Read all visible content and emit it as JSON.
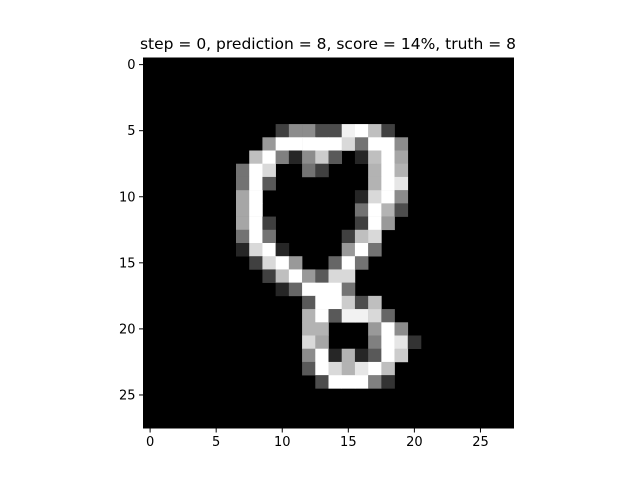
{
  "chart_data": {
    "type": "heatmap",
    "title": "step = 0, prediction = 8, score = 14%, truth = 8",
    "rows": 28,
    "cols": 28,
    "colormap": "gray",
    "xlim": [
      -0.5,
      27.5
    ],
    "ylim": [
      27.5,
      -0.5
    ],
    "xticks": [
      0,
      5,
      10,
      15,
      20,
      25
    ],
    "yticks": [
      0,
      5,
      10,
      15,
      20,
      25
    ],
    "grid": false,
    "nonzero_cells": [
      [
        5,
        10,
        0.25
      ],
      [
        5,
        11,
        0.55
      ],
      [
        5,
        12,
        0.55
      ],
      [
        5,
        13,
        0.3
      ],
      [
        5,
        14,
        0.3
      ],
      [
        5,
        15,
        0.95
      ],
      [
        5,
        16,
        1.0
      ],
      [
        5,
        17,
        0.75
      ],
      [
        5,
        18,
        0.25
      ],
      [
        6,
        9,
        0.6
      ],
      [
        6,
        10,
        1.0
      ],
      [
        6,
        11,
        1.0
      ],
      [
        6,
        12,
        1.0
      ],
      [
        6,
        13,
        1.0
      ],
      [
        6,
        14,
        1.0
      ],
      [
        6,
        15,
        0.85
      ],
      [
        6,
        16,
        0.45
      ],
      [
        6,
        17,
        1.0
      ],
      [
        6,
        18,
        1.0
      ],
      [
        6,
        19,
        0.55
      ],
      [
        7,
        8,
        0.75
      ],
      [
        7,
        9,
        1.0
      ],
      [
        7,
        10,
        0.5
      ],
      [
        7,
        11,
        0.15
      ],
      [
        7,
        12,
        0.55
      ],
      [
        7,
        13,
        0.8
      ],
      [
        7,
        14,
        0.35
      ],
      [
        7,
        16,
        0.15
      ],
      [
        7,
        17,
        0.75
      ],
      [
        7,
        18,
        1.0
      ],
      [
        7,
        19,
        0.65
      ],
      [
        8,
        7,
        0.45
      ],
      [
        8,
        8,
        1.0
      ],
      [
        8,
        9,
        0.85
      ],
      [
        8,
        12,
        0.45
      ],
      [
        8,
        13,
        0.25
      ],
      [
        8,
        17,
        0.7
      ],
      [
        8,
        18,
        1.0
      ],
      [
        8,
        19,
        0.7
      ],
      [
        9,
        7,
        0.45
      ],
      [
        9,
        8,
        1.0
      ],
      [
        9,
        9,
        0.35
      ],
      [
        9,
        17,
        0.7
      ],
      [
        9,
        18,
        1.0
      ],
      [
        9,
        19,
        0.9
      ],
      [
        10,
        7,
        0.65
      ],
      [
        10,
        8,
        1.0
      ],
      [
        10,
        16,
        0.15
      ],
      [
        10,
        17,
        0.85
      ],
      [
        10,
        18,
        1.0
      ],
      [
        10,
        19,
        0.55
      ],
      [
        11,
        7,
        0.65
      ],
      [
        11,
        8,
        1.0
      ],
      [
        11,
        16,
        0.45
      ],
      [
        11,
        17,
        1.0
      ],
      [
        11,
        18,
        0.7
      ],
      [
        11,
        19,
        0.3
      ],
      [
        12,
        7,
        0.65
      ],
      [
        12,
        8,
        1.0
      ],
      [
        12,
        9,
        0.25
      ],
      [
        12,
        16,
        0.25
      ],
      [
        12,
        17,
        1.0
      ],
      [
        12,
        18,
        0.6
      ],
      [
        13,
        7,
        0.45
      ],
      [
        13,
        8,
        1.0
      ],
      [
        13,
        9,
        0.45
      ],
      [
        13,
        15,
        0.25
      ],
      [
        13,
        16,
        0.75
      ],
      [
        13,
        17,
        0.85
      ],
      [
        14,
        7,
        0.15
      ],
      [
        14,
        8,
        0.85
      ],
      [
        14,
        9,
        1.0
      ],
      [
        14,
        10,
        0.15
      ],
      [
        14,
        15,
        0.6
      ],
      [
        14,
        16,
        1.0
      ],
      [
        14,
        17,
        0.45
      ],
      [
        15,
        8,
        0.25
      ],
      [
        15,
        9,
        0.85
      ],
      [
        15,
        10,
        1.0
      ],
      [
        15,
        11,
        0.6
      ],
      [
        15,
        14,
        0.4
      ],
      [
        15,
        15,
        1.0
      ],
      [
        15,
        16,
        0.45
      ],
      [
        16,
        9,
        0.25
      ],
      [
        16,
        10,
        0.75
      ],
      [
        16,
        11,
        1.0
      ],
      [
        16,
        12,
        0.6
      ],
      [
        16,
        13,
        0.35
      ],
      [
        16,
        14,
        0.85
      ],
      [
        16,
        15,
        0.85
      ],
      [
        17,
        10,
        0.15
      ],
      [
        17,
        11,
        0.4
      ],
      [
        17,
        12,
        1.0
      ],
      [
        17,
        13,
        1.0
      ],
      [
        17,
        14,
        1.0
      ],
      [
        17,
        15,
        0.45
      ],
      [
        18,
        12,
        0.35
      ],
      [
        18,
        13,
        1.0
      ],
      [
        18,
        14,
        1.0
      ],
      [
        18,
        15,
        0.8
      ],
      [
        18,
        16,
        0.3
      ],
      [
        18,
        17,
        0.75
      ],
      [
        19,
        12,
        0.7
      ],
      [
        19,
        13,
        1.0
      ],
      [
        19,
        14,
        0.35
      ],
      [
        19,
        15,
        0.95
      ],
      [
        19,
        16,
        0.95
      ],
      [
        19,
        17,
        0.85
      ],
      [
        19,
        18,
        0.4
      ],
      [
        20,
        12,
        0.7
      ],
      [
        20,
        13,
        0.7
      ],
      [
        20,
        17,
        0.6
      ],
      [
        20,
        18,
        1.0
      ],
      [
        20,
        19,
        0.55
      ],
      [
        21,
        12,
        0.85
      ],
      [
        21,
        13,
        0.65
      ],
      [
        21,
        17,
        0.5
      ],
      [
        21,
        18,
        1.0
      ],
      [
        21,
        19,
        0.9
      ],
      [
        21,
        20,
        0.2
      ],
      [
        22,
        12,
        0.55
      ],
      [
        22,
        13,
        1.0
      ],
      [
        22,
        14,
        0.15
      ],
      [
        22,
        15,
        0.7
      ],
      [
        22,
        16,
        0.15
      ],
      [
        22,
        17,
        0.35
      ],
      [
        22,
        18,
        1.0
      ],
      [
        22,
        19,
        0.8
      ],
      [
        23,
        12,
        0.35
      ],
      [
        23,
        13,
        1.0
      ],
      [
        23,
        14,
        0.85
      ],
      [
        23,
        15,
        0.7
      ],
      [
        23,
        16,
        0.9
      ],
      [
        23,
        17,
        1.0
      ],
      [
        23,
        18,
        0.75
      ],
      [
        24,
        13,
        0.3
      ],
      [
        24,
        14,
        1.0
      ],
      [
        24,
        15,
        1.0
      ],
      [
        24,
        16,
        1.0
      ],
      [
        24,
        17,
        0.5
      ],
      [
        24,
        18,
        0.2
      ]
    ]
  }
}
